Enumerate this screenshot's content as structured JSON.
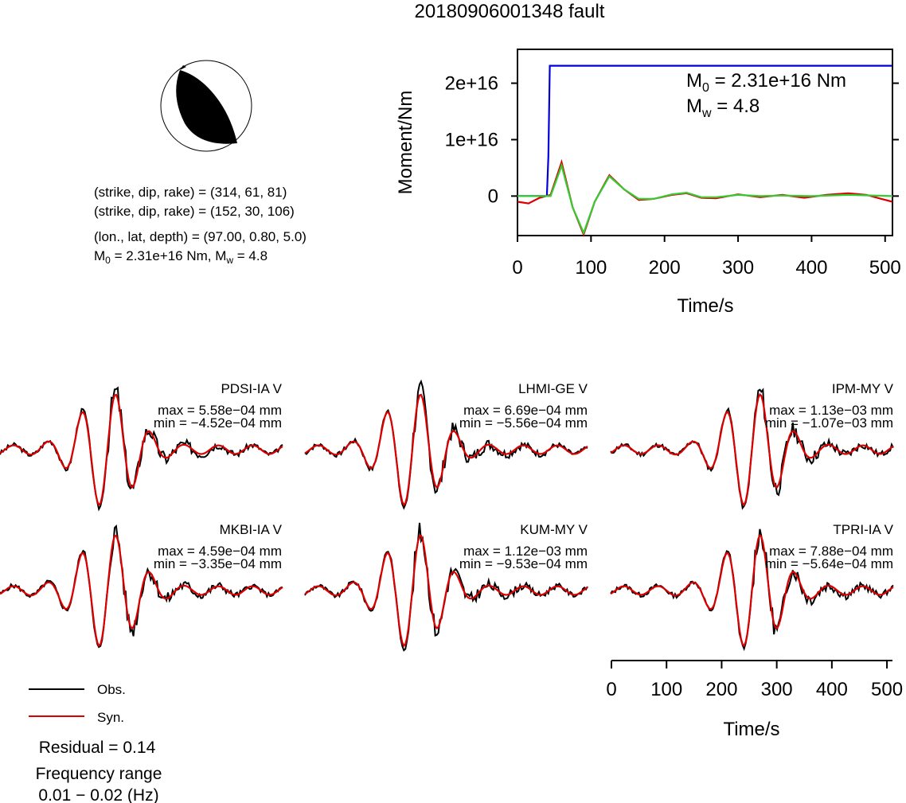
{
  "title": "20180906001348 fault",
  "mechanism": {
    "line1": "(strike, dip, rake) = (314, 61, 81)",
    "line2": "(strike, dip, rake) = (152, 30, 106)",
    "line3": "(lon., lat, depth) = (97.00, 0.80, 5.0)",
    "m0_prefix": "M",
    "m0_sub": "0",
    "m0_rest": " = 2.31e+16 Nm, M",
    "mw_sub": "w",
    "mw_rest": " = 4.8"
  },
  "moment_plot": {
    "ylabel": "Moment/Nm",
    "xlabel": "Time/s",
    "m0_label_prefix": "M",
    "m0_label_sub": "0",
    "m0_label_rest": " = 2.31e+16 Nm",
    "mw_label_prefix": "M",
    "mw_label_sub": "w",
    "mw_label_rest": " = 4.8",
    "colors": {
      "cumulative": "#0000dd",
      "obs": "#dd0000",
      "syn": "#33cc33"
    }
  },
  "stations": [
    {
      "name": "PDSI-IA V",
      "max": "max = 5.58e−04 mm",
      "min": "min = −4.52e−04 mm"
    },
    {
      "name": "LHMI-GE V",
      "max": "max = 6.69e−04 mm",
      "min": "min = −5.56e−04 mm"
    },
    {
      "name": "IPM-MY V",
      "max": "max = 1.13e−03 mm",
      "min": "min = −1.07e−03 mm"
    },
    {
      "name": "MKBI-IA V",
      "max": "max = 4.59e−04 mm",
      "min": "min = −3.35e−04 mm"
    },
    {
      "name": "KUM-MY V",
      "max": "max = 1.12e−03 mm",
      "min": "min = −9.53e−04 mm"
    },
    {
      "name": "TPRI-IA V",
      "max": "max = 7.88e−04 mm",
      "min": "min = −5.64e−04 mm"
    }
  ],
  "wave_axis": {
    "xlabel": "Time/s"
  },
  "legend": {
    "obs": "Obs.",
    "syn": "Syn.",
    "obs_color": "#000000",
    "syn_color": "#dd0000"
  },
  "residual": "Residual = 0.14",
  "freq_label": "Frequency range",
  "freq_value": "0.01 − 0.02 (Hz)",
  "chart_data": [
    {
      "type": "line",
      "ylabel": "Moment/Nm",
      "xlabel": "Time/s",
      "xlim": [
        0,
        510
      ],
      "ylim": [
        -7000000000000000.0,
        2.6e+16
      ],
      "x_ticks": [
        0,
        100,
        200,
        300,
        400,
        500
      ],
      "y_ticks": [
        0,
        1e+16,
        2e+16
      ],
      "y_tick_labels": [
        "0",
        "1e+16",
        "2e+16"
      ],
      "series": [
        {
          "x": [
            0,
            40,
            42,
            44,
            510
          ],
          "values": [
            0,
            0,
            7000000000000000.0,
            2.31e+16,
            2.31e+16
          ]
        },
        {
          "x": [
            0,
            15,
            30,
            45,
            60,
            75,
            90,
            105,
            125,
            145,
            165,
            185,
            210,
            230,
            250,
            270,
            300,
            330,
            360,
            390,
            420,
            450,
            475,
            495,
            510
          ],
          "values": [
            -1000000000000000.0,
            -1300000000000000.0,
            -300000000000000.0,
            200000000000000.0,
            6000000000000000.0,
            -2000000000000000.0,
            -6800000000000000.0,
            -1000000000000000.0,
            3700000000000000.0,
            1200000000000000.0,
            -700000000000000.0,
            -500000000000000.0,
            200000000000000.0,
            500000000000000.0,
            -300000000000000.0,
            -400000000000000.0,
            300000000000000.0,
            -200000000000000.0,
            200000000000000.0,
            -300000000000000.0,
            200000000000000.0,
            500000000000000.0,
            200000000000000.0,
            -500000000000000.0,
            -1000000000000000.0
          ]
        },
        {
          "x": [
            0,
            40,
            45,
            60,
            75,
            90,
            105,
            125,
            145,
            165,
            185,
            210,
            230,
            250,
            270,
            300,
            330,
            360,
            400,
            450,
            510
          ],
          "values": [
            0,
            0,
            0,
            5400000000000000.0,
            -2000000000000000.0,
            -6500000000000000.0,
            -1000000000000000.0,
            3500000000000000.0,
            1200000000000000.0,
            -500000000000000.0,
            -500000000000000.0,
            300000000000000.0,
            600000000000000.0,
            -200000000000000.0,
            -200000000000000.0,
            200000000000000.0,
            0,
            100000000000000.0,
            0,
            200000000000000.0,
            0
          ]
        }
      ]
    },
    {
      "type": "line",
      "xlabel": "Time/s",
      "xlim": [
        0,
        510
      ],
      "x_ticks": [
        0,
        100,
        200,
        300,
        400,
        500
      ],
      "panels": [
        {
          "station": "PDSI-IA V",
          "max": 0.000558,
          "min": -0.000452
        },
        {
          "station": "LHMI-GE V",
          "max": 0.000669,
          "min": -0.000556
        },
        {
          "station": "IPM-MY V",
          "max": 0.00113,
          "min": -0.00107
        },
        {
          "station": "MKBI-IA V",
          "max": 0.000459,
          "min": -0.000335
        },
        {
          "station": "KUM-MY V",
          "max": 0.00112,
          "min": -0.000953
        },
        {
          "station": "TPRI-IA V",
          "max": 0.000788,
          "min": -0.000564
        }
      ]
    }
  ]
}
